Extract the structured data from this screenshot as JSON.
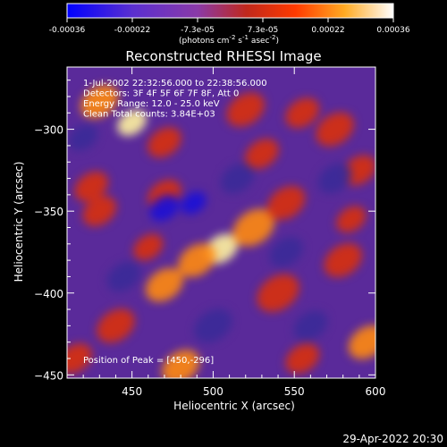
{
  "chart_data": {
    "type": "heatmap",
    "title": "Reconstructed RHESSI Image",
    "xlabel": "Heliocentric X (arcsec)",
    "ylabel": "Heliocentric Y (arcsec)",
    "xlim": [
      410,
      600
    ],
    "ylim": [
      -452,
      -262
    ],
    "x_ticks": [
      450,
      500,
      550,
      600
    ],
    "y_ticks": [
      -300,
      -350,
      -400,
      -450
    ],
    "colorbar": {
      "range": [
        -0.00036,
        0.00036
      ],
      "tick_labels": [
        "-0.00036",
        "-0.00022",
        "-7.3e-05",
        "7.3e-05",
        "0.00022",
        "0.00036"
      ],
      "units_label": "(photons cm",
      "units_exp1": "-2",
      "units_mid": " s",
      "units_exp2": "-1",
      "units_mid2": " asec",
      "units_exp3": "-2",
      "units_end": ")",
      "colors": [
        "#0000ff",
        "#7a3fc8",
        "#c0281c",
        "#ff5500",
        "#ffcc33",
        "#ffffff"
      ]
    },
    "annotations": [
      "1-Jul-2002 22:32:56.000 to 22:38:56.000",
      "Detectors: 3F 4F 5F 6F 7F 8F, Att 0",
      "Energy Range: 12.0 - 25.0 keV",
      "Clean    Total counts: 3.84E+03"
    ],
    "peak_label": "Position of Peak = [450,-296]",
    "peak": [
      450,
      -296
    ],
    "blobs": [
      {
        "x": 450,
        "y": -296,
        "s": 7,
        "a": 1.0
      },
      {
        "x": 430,
        "y": -283,
        "s": 9,
        "a": 0.65
      },
      {
        "x": 470,
        "y": -308,
        "s": 8,
        "a": 0.55
      },
      {
        "x": 520,
        "y": -288,
        "s": 9,
        "a": 0.55
      },
      {
        "x": 555,
        "y": -290,
        "s": 8,
        "a": 0.5
      },
      {
        "x": 575,
        "y": -300,
        "s": 9,
        "a": 0.55
      },
      {
        "x": 590,
        "y": -325,
        "s": 8,
        "a": 0.5
      },
      {
        "x": 505,
        "y": -373,
        "s": 8,
        "a": 0.95
      },
      {
        "x": 490,
        "y": -380,
        "s": 9,
        "a": 0.75
      },
      {
        "x": 525,
        "y": -360,
        "s": 10,
        "a": 0.7
      },
      {
        "x": 545,
        "y": -345,
        "s": 9,
        "a": 0.6
      },
      {
        "x": 470,
        "y": -395,
        "s": 9,
        "a": 0.65
      },
      {
        "x": 460,
        "y": -372,
        "s": 7,
        "a": 0.55
      },
      {
        "x": 430,
        "y": -350,
        "s": 8,
        "a": 0.6
      },
      {
        "x": 425,
        "y": -335,
        "s": 8,
        "a": 0.55
      },
      {
        "x": 470,
        "y": -340,
        "s": 8,
        "a": 0.55
      },
      {
        "x": 440,
        "y": -420,
        "s": 9,
        "a": 0.6
      },
      {
        "x": 415,
        "y": -440,
        "s": 8,
        "a": 0.55
      },
      {
        "x": 480,
        "y": -445,
        "s": 9,
        "a": 0.75
      },
      {
        "x": 540,
        "y": -400,
        "s": 10,
        "a": 0.6
      },
      {
        "x": 580,
        "y": -380,
        "s": 9,
        "a": 0.6
      },
      {
        "x": 595,
        "y": -430,
        "s": 9,
        "a": 0.65
      },
      {
        "x": 555,
        "y": -440,
        "s": 8,
        "a": 0.5
      },
      {
        "x": 530,
        "y": -315,
        "s": 8,
        "a": 0.5
      },
      {
        "x": 585,
        "y": -355,
        "s": 7,
        "a": 0.45
      },
      {
        "x": 470,
        "y": -348,
        "s": -7,
        "a": -0.9
      },
      {
        "x": 488,
        "y": -345,
        "s": -6,
        "a": -0.85
      },
      {
        "x": 515,
        "y": -330,
        "s": -8,
        "a": -0.5
      },
      {
        "x": 545,
        "y": -375,
        "s": -8,
        "a": -0.5
      },
      {
        "x": 560,
        "y": -420,
        "s": -8,
        "a": -0.6
      },
      {
        "x": 500,
        "y": -420,
        "s": -9,
        "a": -0.45
      },
      {
        "x": 445,
        "y": -390,
        "s": -8,
        "a": -0.45
      },
      {
        "x": 575,
        "y": -330,
        "s": -8,
        "a": -0.45
      },
      {
        "x": 420,
        "y": -305,
        "s": -7,
        "a": -0.4
      }
    ]
  },
  "footer": {
    "timestamp": "29-Apr-2022 20:30"
  }
}
